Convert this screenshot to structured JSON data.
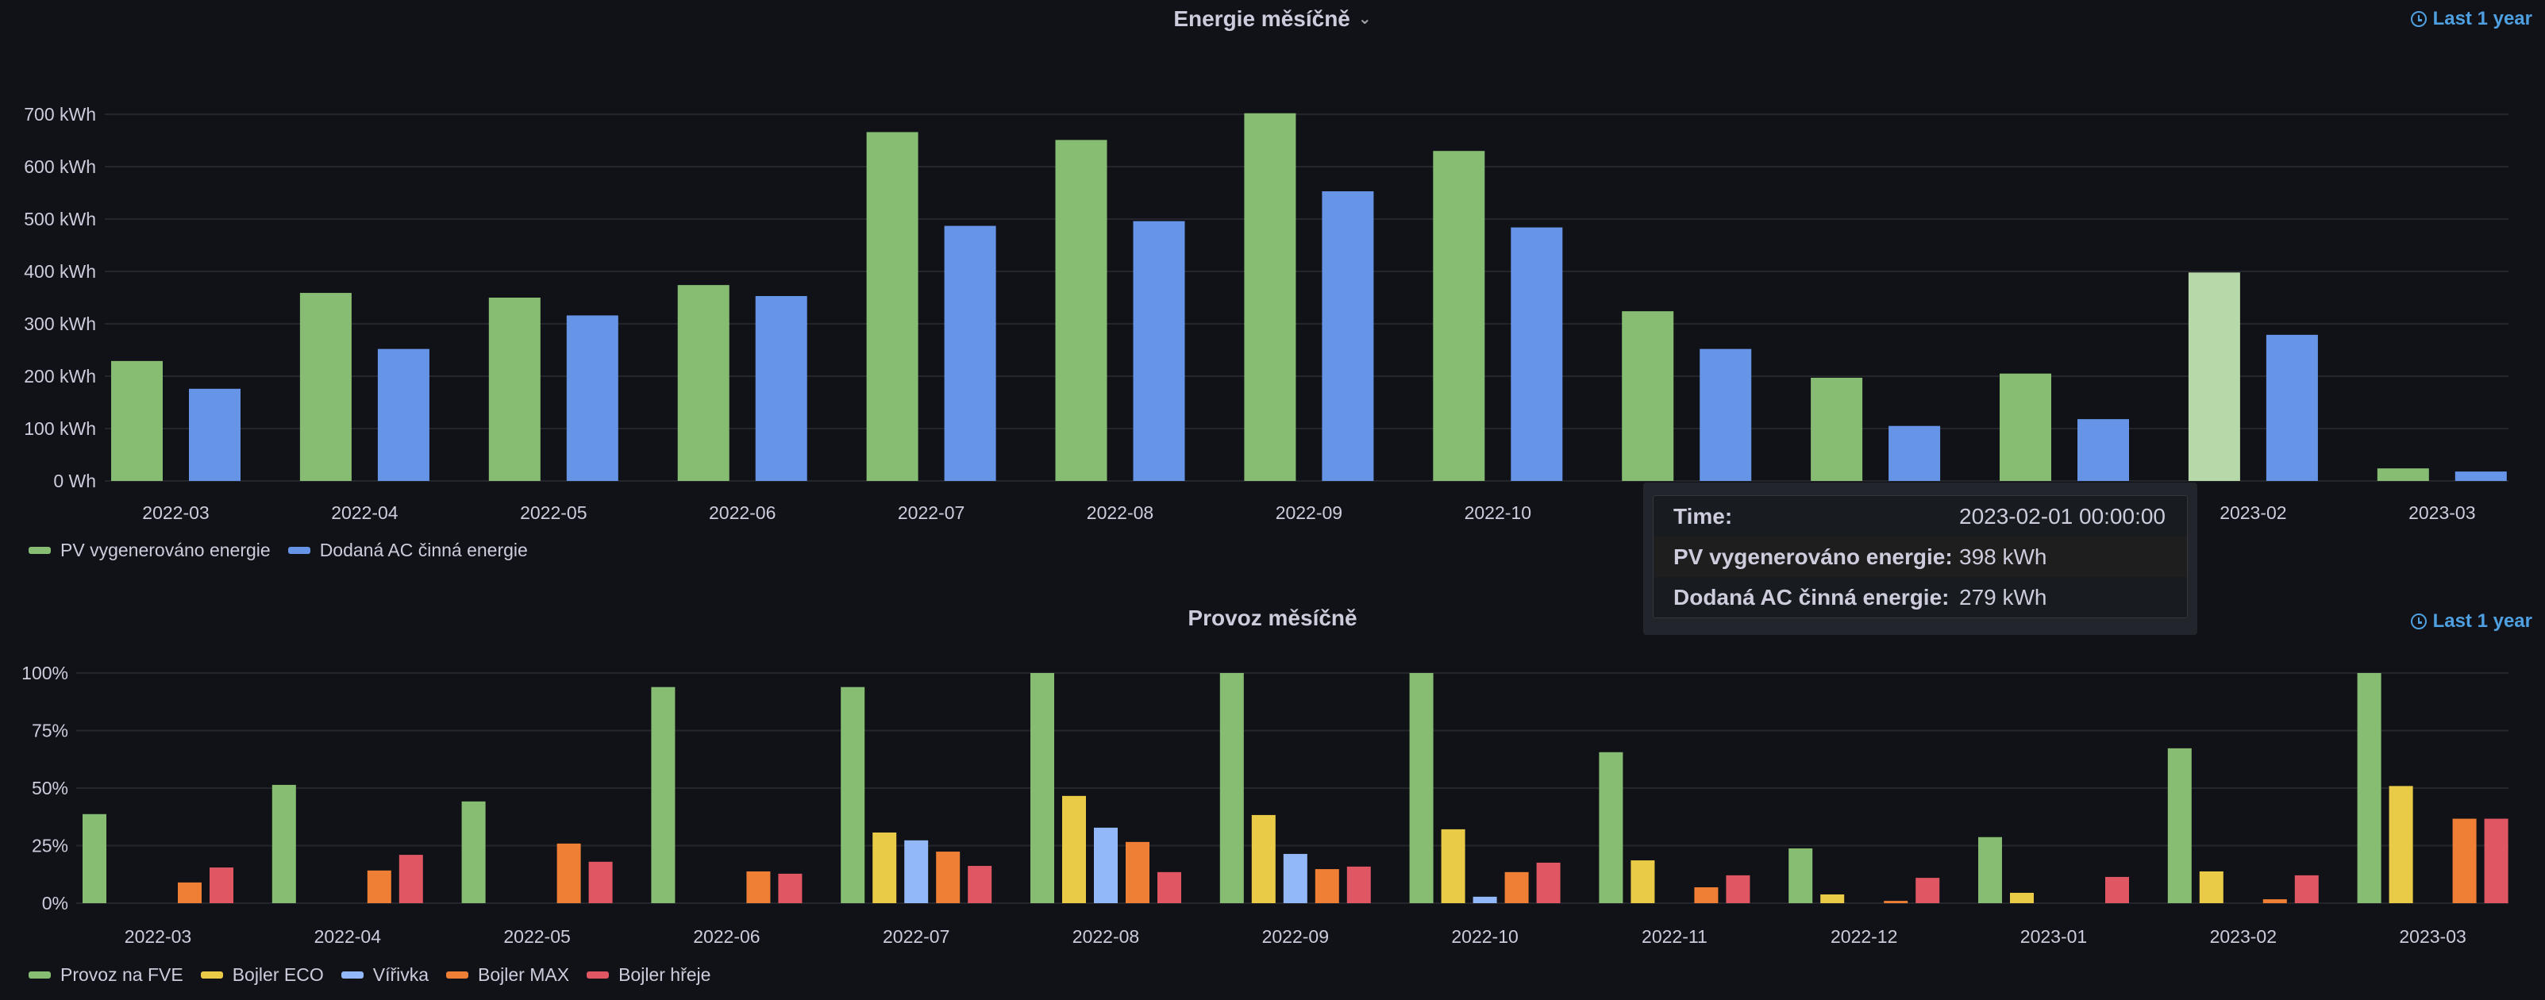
{
  "panels": {
    "top": {
      "title": "Energie měsíčně",
      "time_range": "Last 1 year",
      "icon": "clock-icon"
    },
    "bottom": {
      "title": "Provoz měsíčně",
      "time_range": "Last 1 year",
      "icon": "clock-icon"
    }
  },
  "tooltip": {
    "rows": [
      {
        "label": "Time:",
        "value": "2023-02-01 00:00:00"
      },
      {
        "label": "PV vygenerováno energie:",
        "value": "398 kWh"
      },
      {
        "label": "Dodaná AC činná energie:",
        "value": "279 kWh"
      }
    ]
  },
  "chart_data": [
    {
      "type": "bar",
      "title": "Energie měsíčně",
      "xlabel": "",
      "ylabel": "",
      "ylim": [
        0,
        700
      ],
      "yticks": [
        0,
        100,
        200,
        300,
        400,
        500,
        600,
        700
      ],
      "ytick_labels": [
        "0 Wh",
        "100 kWh",
        "200 kWh",
        "300 kWh",
        "400 kWh",
        "500 kWh",
        "600 kWh",
        "700 kWh"
      ],
      "grid": true,
      "legend_position": "bottom-left",
      "categories": [
        "2022-03",
        "2022-04",
        "2022-05",
        "2022-06",
        "2022-07",
        "2022-08",
        "2022-09",
        "2022-10",
        "2022-11",
        "2022-12",
        "2023-01",
        "2023-02",
        "2023-03"
      ],
      "highlighted_category": "2023-02",
      "series": [
        {
          "name": "PV vygenerováno energie",
          "color": "#87bd72",
          "highlight_color": "#b7d8a9",
          "values": [
            229,
            359,
            350,
            374,
            666,
            651,
            702,
            630,
            324,
            197,
            205,
            398,
            24
          ]
        },
        {
          "name": "Dodaná AC činná energie",
          "color": "#6695e8",
          "values": [
            176,
            252,
            316,
            353,
            487,
            496,
            553,
            484,
            252,
            105,
            118,
            279,
            18
          ]
        }
      ]
    },
    {
      "type": "bar",
      "title": "Provoz měsíčně",
      "xlabel": "",
      "ylabel": "",
      "ylim": [
        0,
        100
      ],
      "yticks": [
        0,
        25,
        50,
        75,
        100
      ],
      "ytick_labels": [
        "0%",
        "25%",
        "50%",
        "75%",
        "100%"
      ],
      "grid": true,
      "legend_position": "bottom-left",
      "categories": [
        "2022-03",
        "2022-04",
        "2022-05",
        "2022-06",
        "2022-07",
        "2022-08",
        "2022-09",
        "2022-10",
        "2022-11",
        "2022-12",
        "2023-01",
        "2023-02",
        "2023-03"
      ],
      "series": [
        {
          "name": "Provoz na FVE",
          "color": "#87bd72",
          "values": [
            38.7,
            51.4,
            44.2,
            93.9,
            93.9,
            100,
            100,
            100,
            65.6,
            23.8,
            28.7,
            67.3,
            100
          ]
        },
        {
          "name": "Bojler ECO",
          "color": "#eacb47",
          "values": [
            0,
            0,
            0,
            0,
            30.7,
            46.6,
            38.3,
            32.1,
            18.6,
            3.8,
            4.5,
            13.8,
            50.9
          ]
        },
        {
          "name": "Vířivka",
          "color": "#93b8fa",
          "values": [
            0,
            0,
            0,
            0,
            27.3,
            32.8,
            21.4,
            2.8,
            0,
            0,
            0,
            0,
            0
          ]
        },
        {
          "name": "Bojler MAX",
          "color": "#ee7f34",
          "values": [
            9.0,
            14.2,
            25.9,
            13.8,
            22.4,
            26.6,
            14.8,
            13.5,
            6.9,
            1.0,
            0,
            1.7,
            36.7
          ]
        },
        {
          "name": "Bojler hřeje",
          "color": "#e05663",
          "values": [
            15.5,
            21.0,
            18.0,
            12.8,
            16.2,
            13.5,
            15.9,
            17.6,
            12.1,
            11.0,
            11.4,
            12.1,
            36.7
          ]
        }
      ]
    }
  ]
}
